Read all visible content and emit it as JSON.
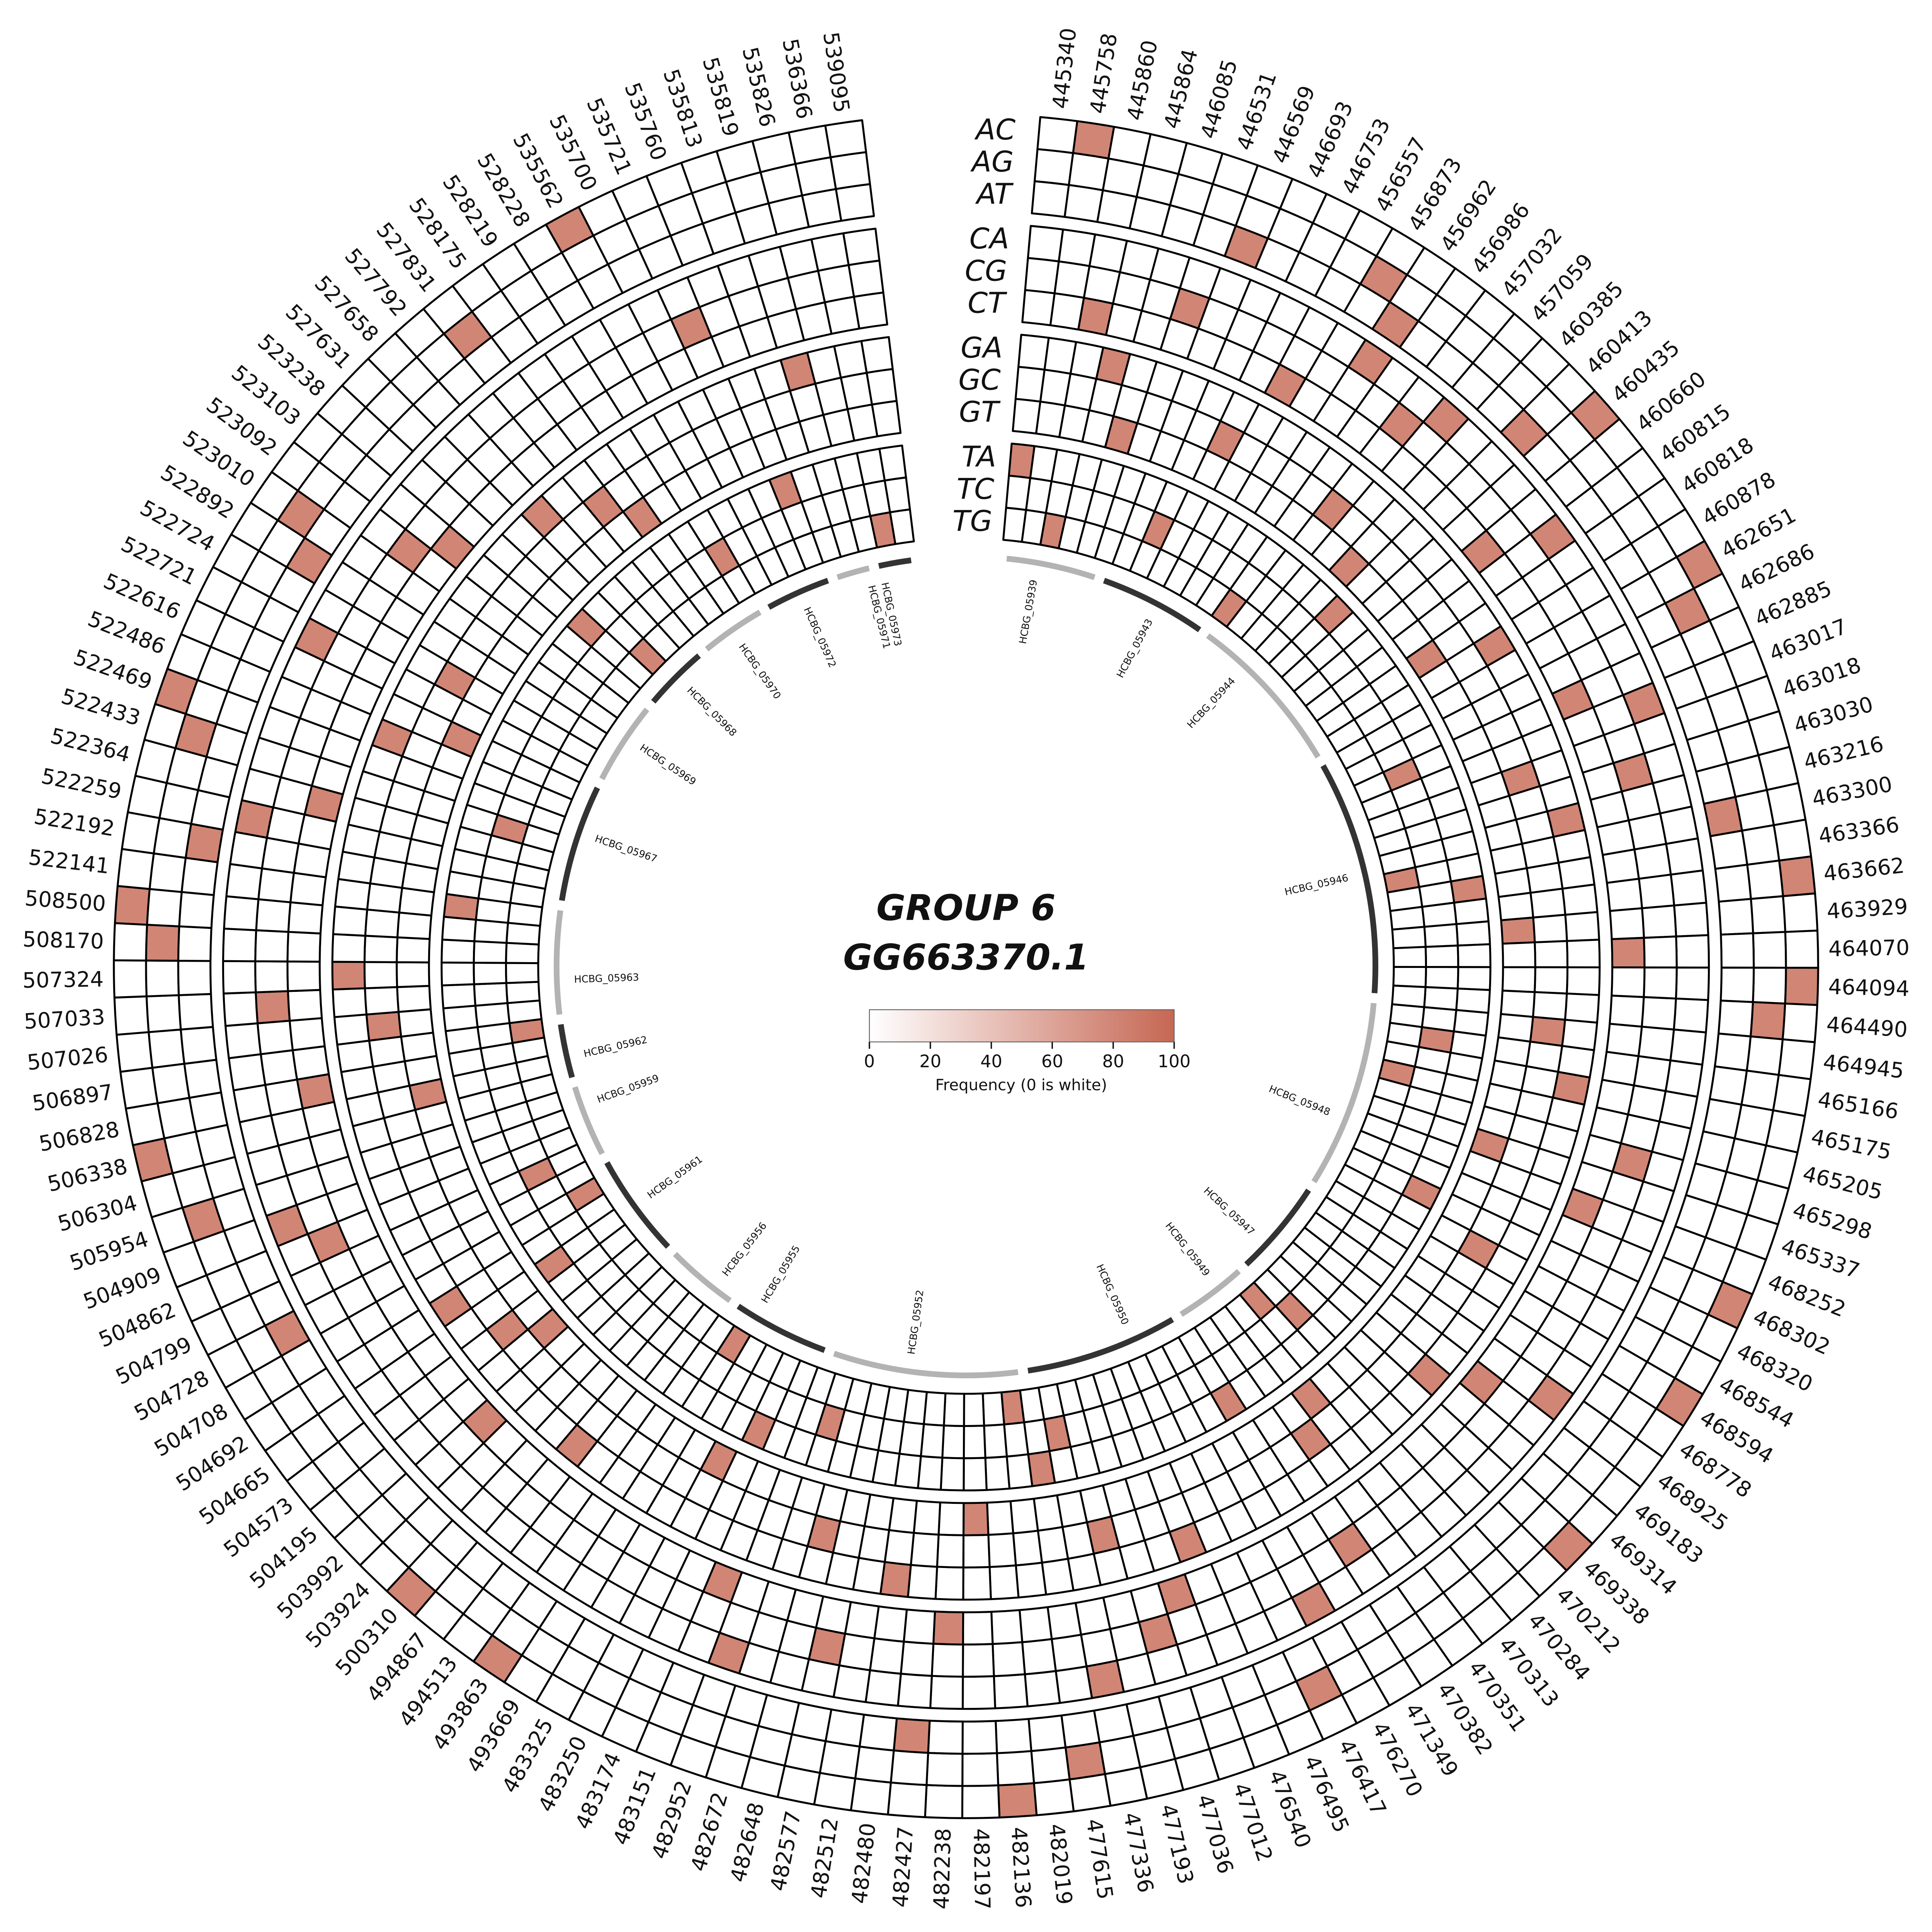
{
  "title": {
    "line1": "GROUP 6",
    "line2": "GG663370.1"
  },
  "legend": {
    "label": "Frequency (0 is white)",
    "ticks": [
      0,
      20,
      40,
      60,
      80,
      100
    ],
    "min_color": "#ffffff",
    "max_color": "#c66753"
  },
  "chart_data": {
    "type": "heatmap",
    "layout": "circular",
    "start_angle_deg": 5,
    "end_angle_deg": 353,
    "grid_color": "#000000",
    "colored_cell_value": 80,
    "value_range": [
      0,
      100
    ],
    "ring_groups": [
      [
        "AC",
        "AG",
        "AT"
      ],
      [
        "CA",
        "CG",
        "CT"
      ],
      [
        "GA",
        "GC",
        "GT"
      ],
      [
        "TA",
        "TC",
        "TG"
      ]
    ],
    "positions": [
      "445340",
      "445758",
      "445860",
      "445864",
      "446085",
      "446531",
      "446569",
      "446693",
      "446753",
      "456557",
      "456873",
      "456962",
      "456986",
      "457032",
      "457059",
      "460385",
      "460413",
      "460435",
      "460660",
      "460815",
      "460818",
      "460878",
      "462651",
      "462686",
      "462885",
      "463017",
      "463018",
      "463030",
      "463216",
      "463300",
      "463366",
      "463662",
      "463929",
      "464070",
      "464094",
      "464490",
      "464945",
      "465166",
      "465175",
      "465205",
      "465298",
      "465337",
      "468252",
      "468302",
      "468320",
      "468544",
      "468594",
      "468778",
      "468925",
      "469183",
      "469314",
      "469338",
      "470212",
      "470284",
      "470313",
      "470351",
      "470382",
      "471349",
      "476270",
      "476417",
      "476495",
      "476540",
      "477012",
      "477036",
      "477193",
      "477336",
      "477615",
      "482019",
      "482136",
      "482197",
      "482238",
      "482427",
      "482480",
      "482512",
      "482577",
      "482648",
      "482672",
      "482952",
      "483151",
      "483174",
      "483250",
      "483325",
      "493669",
      "493863",
      "494513",
      "494867",
      "500310",
      "503924",
      "503992",
      "504195",
      "504573",
      "504665",
      "504692",
      "504708",
      "504728",
      "504799",
      "504862",
      "504909",
      "505954",
      "506304",
      "506338",
      "506828",
      "506897",
      "507026",
      "507033",
      "507324",
      "508170",
      "508500",
      "522141",
      "522192",
      "522259",
      "522364",
      "522433",
      "522469",
      "522486",
      "522616",
      "522721",
      "522724",
      "522892",
      "523010",
      "523092",
      "523103",
      "523238",
      "527631",
      "527658",
      "527792",
      "527831",
      "528175",
      "528219",
      "528228",
      "535562",
      "535700",
      "535721",
      "535760",
      "535813",
      "535819",
      "535826",
      "536366",
      "539095"
    ],
    "genes": [
      {
        "name": "HCBG_05939",
        "angle": 10
      },
      {
        "name": "HCBG_05943",
        "angle": 28
      },
      {
        "name": "HCBG_05944",
        "angle": 43
      },
      {
        "name": "HCBG_05946",
        "angle": 77
      },
      {
        "name": "HCBG_05948",
        "angle": 112
      },
      {
        "name": "HCBG_05947",
        "angle": 133
      },
      {
        "name": "HCBG_05949",
        "angle": 142
      },
      {
        "name": "HCBG_05950",
        "angle": 156
      },
      {
        "name": "HCBG_05952",
        "angle": 188
      },
      {
        "name": "HCBG_05955",
        "angle": 211
      },
      {
        "name": "HCBG_05956",
        "angle": 218
      },
      {
        "name": "HCBG_05961",
        "angle": 234
      },
      {
        "name": "HCBG_05959",
        "angle": 250
      },
      {
        "name": "HCBG_05962",
        "angle": 257
      },
      {
        "name": "HCBG_05963",
        "angle": 268
      },
      {
        "name": "HCBG_05967",
        "angle": 289
      },
      {
        "name": "HCBG_05969",
        "angle": 304
      },
      {
        "name": "HCBG_05968",
        "angle": 315
      },
      {
        "name": "HCBG_05970",
        "angle": 325
      },
      {
        "name": "HCBG_05972",
        "angle": 336
      },
      {
        "name": "HCBG_05971",
        "angle": 346
      },
      {
        "name": "HCBG_05973",
        "angle": 348
      }
    ],
    "gene_arc_colors": {
      "light": "#b3b3b3",
      "dark": "#333333"
    },
    "colored_cells": {
      "AC": [
        1,
        17,
        22,
        31,
        34,
        43,
        46,
        51,
        68,
        83,
        86,
        100,
        107,
        113,
        130
      ],
      "AG": [
        10,
        23,
        35,
        59,
        66,
        98,
        106,
        112,
        119,
        126
      ],
      "AT": [
        6,
        11,
        16,
        29,
        71,
        94,
        109,
        118
      ],
      "CA": [
        11,
        14,
        19,
        25,
        48,
        58,
        65,
        77,
        97,
        110,
        116
      ],
      "CG": [
        5,
        13,
        27,
        40,
        56,
        63,
        74,
        96,
        104,
        120,
        132
      ],
      "CT": [
        2,
        9,
        18,
        24,
        33,
        42,
        49,
        62,
        70,
        78,
        88,
        101,
        111,
        121
      ],
      "GA": [
        3,
        21,
        28,
        38,
        50,
        61,
        72,
        85,
        92,
        105,
        114,
        124,
        135
      ],
      "GC": [
        8,
        13,
        26,
        36,
        45,
        55,
        64,
        75,
        90,
        103,
        117,
        126
      ],
      "GT": [
        4,
        15,
        20,
        32,
        41,
        54,
        69,
        80,
        89,
        100,
        115,
        127
      ],
      "TA": [
        0,
        16,
        30,
        44,
        57,
        66,
        79,
        91,
        108,
        122,
        133
      ],
      "TC": [
        7,
        24,
        37,
        52,
        65,
        76,
        95,
        112,
        129
      ],
      "TG": [
        2,
        12,
        29,
        39,
        53,
        67,
        82,
        93,
        102,
        123,
        137
      ]
    }
  }
}
